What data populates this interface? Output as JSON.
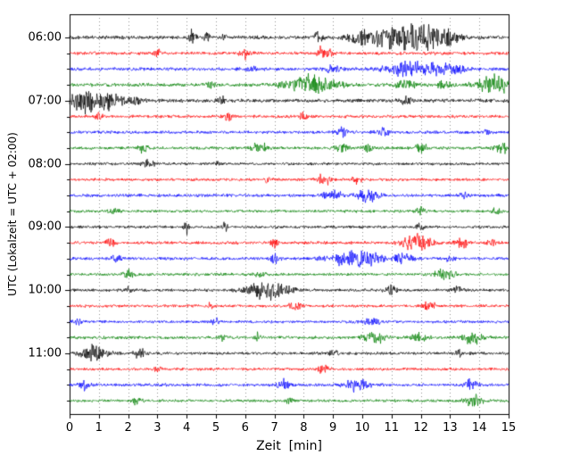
{
  "chart_data": {
    "type": "line",
    "subtype": "seismogram-helicorder",
    "title": "",
    "xlabel": "Zeit  [min]",
    "ylabel": "UTC (Lokalzeit = UTC + 02:00)",
    "xlim": [
      0,
      15
    ],
    "minutes_per_line": 15,
    "grid": "vertical-dotted",
    "legend": "none",
    "x_ticks": [
      "0",
      "1",
      "2",
      "3",
      "4",
      "5",
      "6",
      "7",
      "8",
      "9",
      "10",
      "11",
      "12",
      "13",
      "14",
      "15"
    ],
    "y_ticks": [
      "06:00",
      "07:00",
      "08:00",
      "09:00",
      "10:00",
      "11:00"
    ],
    "colors": {
      "black": "#000000",
      "red": "#ff0000",
      "blue": "#0000ff",
      "green": "#008000",
      "grid": "rgba(0,0,0,0.55)",
      "axis": "#000000"
    },
    "color_cycle": [
      "black",
      "red",
      "blue",
      "green"
    ],
    "traces": [
      {
        "start": "06:00",
        "color": "black",
        "base": 1.8,
        "bursts": [
          [
            4.2,
            0.08,
            8
          ],
          [
            4.7,
            0.06,
            5
          ],
          [
            5.3,
            0.05,
            4
          ],
          [
            8.5,
            0.1,
            5
          ],
          [
            10.0,
            0.3,
            4
          ],
          [
            11.3,
            0.8,
            11
          ],
          [
            12.3,
            0.5,
            7
          ],
          [
            13.0,
            0.2,
            4
          ]
        ]
      },
      {
        "start": "06:15",
        "color": "red",
        "base": 1.6,
        "bursts": [
          [
            3.0,
            0.1,
            3
          ],
          [
            6.0,
            0.12,
            5
          ],
          [
            8.6,
            0.08,
            7
          ],
          [
            8.9,
            0.1,
            4
          ]
        ]
      },
      {
        "start": "06:30",
        "color": "blue",
        "base": 1.7,
        "bursts": [
          [
            6.2,
            0.1,
            3
          ],
          [
            9.0,
            0.15,
            4
          ],
          [
            11.5,
            0.5,
            7
          ],
          [
            12.6,
            0.3,
            5
          ],
          [
            13.3,
            0.2,
            4
          ]
        ]
      },
      {
        "start": "06:45",
        "color": "green",
        "base": 1.7,
        "bursts": [
          [
            4.8,
            0.1,
            4
          ],
          [
            8.2,
            0.6,
            9
          ],
          [
            11.5,
            0.2,
            5
          ],
          [
            12.8,
            0.15,
            4
          ],
          [
            14.5,
            0.4,
            9
          ]
        ]
      },
      {
        "start": "07:00",
        "color": "black",
        "base": 1.8,
        "bursts": [
          [
            0.5,
            0.5,
            11
          ],
          [
            1.5,
            0.3,
            6
          ],
          [
            2.3,
            0.15,
            4
          ],
          [
            5.2,
            0.1,
            4
          ],
          [
            11.5,
            0.15,
            4
          ]
        ]
      },
      {
        "start": "07:15",
        "color": "red",
        "base": 1.5,
        "bursts": [
          [
            1.0,
            0.1,
            3
          ],
          [
            5.4,
            0.12,
            5
          ],
          [
            8.0,
            0.1,
            4
          ]
        ]
      },
      {
        "start": "07:30",
        "color": "blue",
        "base": 1.5,
        "bursts": [
          [
            9.3,
            0.12,
            5
          ],
          [
            10.7,
            0.15,
            4
          ],
          [
            14.2,
            0.1,
            3
          ]
        ]
      },
      {
        "start": "07:45",
        "color": "green",
        "base": 1.5,
        "bursts": [
          [
            2.5,
            0.12,
            4
          ],
          [
            6.5,
            0.2,
            5
          ],
          [
            9.3,
            0.15,
            4
          ],
          [
            10.2,
            0.12,
            4
          ],
          [
            12.0,
            0.15,
            5
          ],
          [
            14.8,
            0.2,
            5
          ]
        ]
      },
      {
        "start": "08:00",
        "color": "black",
        "base": 1.4,
        "bursts": [
          [
            2.7,
            0.15,
            3.5
          ],
          [
            5.0,
            0.08,
            2.5
          ]
        ]
      },
      {
        "start": "08:15",
        "color": "red",
        "base": 1.4,
        "bursts": [
          [
            6.8,
            0.08,
            3
          ],
          [
            8.7,
            0.15,
            6
          ],
          [
            9.8,
            0.12,
            4
          ]
        ]
      },
      {
        "start": "08:30",
        "color": "blue",
        "base": 1.5,
        "bursts": [
          [
            9.0,
            0.2,
            5
          ],
          [
            10.2,
            0.25,
            6
          ],
          [
            13.5,
            0.1,
            3
          ]
        ]
      },
      {
        "start": "08:45",
        "color": "green",
        "base": 1.4,
        "bursts": [
          [
            1.5,
            0.12,
            4
          ],
          [
            12.0,
            0.15,
            4
          ],
          [
            14.6,
            0.12,
            4
          ]
        ]
      },
      {
        "start": "09:00",
        "color": "black",
        "base": 1.4,
        "bursts": [
          [
            4.0,
            0.06,
            6
          ],
          [
            5.3,
            0.08,
            4
          ],
          [
            12.0,
            0.1,
            3
          ]
        ]
      },
      {
        "start": "09:15",
        "color": "red",
        "base": 1.5,
        "bursts": [
          [
            1.4,
            0.1,
            4
          ],
          [
            7.0,
            0.1,
            5
          ],
          [
            11.9,
            0.35,
            9
          ],
          [
            13.4,
            0.15,
            5
          ],
          [
            14.4,
            0.1,
            4
          ]
        ]
      },
      {
        "start": "09:30",
        "color": "blue",
        "base": 1.5,
        "bursts": [
          [
            1.6,
            0.15,
            4
          ],
          [
            7.0,
            0.12,
            4
          ],
          [
            9.8,
            0.6,
            9
          ],
          [
            11.4,
            0.2,
            5
          ],
          [
            13.0,
            0.1,
            3
          ]
        ]
      },
      {
        "start": "09:45",
        "color": "green",
        "base": 1.4,
        "bursts": [
          [
            2.0,
            0.12,
            4
          ],
          [
            6.5,
            0.1,
            3
          ],
          [
            12.8,
            0.25,
            5
          ]
        ]
      },
      {
        "start": "10:00",
        "color": "black",
        "base": 1.5,
        "bursts": [
          [
            2.0,
            0.1,
            3
          ],
          [
            6.8,
            0.5,
            9
          ],
          [
            11.0,
            0.15,
            4
          ],
          [
            13.3,
            0.12,
            4
          ]
        ]
      },
      {
        "start": "10:15",
        "color": "red",
        "base": 1.4,
        "bursts": [
          [
            4.8,
            0.08,
            3
          ],
          [
            7.7,
            0.12,
            5
          ],
          [
            12.3,
            0.15,
            5
          ]
        ]
      },
      {
        "start": "10:30",
        "color": "blue",
        "base": 1.4,
        "bursts": [
          [
            0.3,
            0.1,
            3
          ],
          [
            5.0,
            0.1,
            4
          ],
          [
            10.3,
            0.2,
            4
          ]
        ]
      },
      {
        "start": "10:45",
        "color": "green",
        "base": 1.5,
        "bursts": [
          [
            5.2,
            0.06,
            6
          ],
          [
            6.4,
            0.08,
            5
          ],
          [
            10.4,
            0.25,
            6
          ],
          [
            12.0,
            0.2,
            5
          ],
          [
            13.8,
            0.25,
            6
          ]
        ]
      },
      {
        "start": "11:00",
        "color": "black",
        "base": 1.5,
        "bursts": [
          [
            0.8,
            0.35,
            8
          ],
          [
            2.4,
            0.15,
            4
          ],
          [
            9.0,
            0.1,
            3
          ],
          [
            13.3,
            0.1,
            3
          ]
        ]
      },
      {
        "start": "11:15",
        "color": "red",
        "base": 1.4,
        "bursts": [
          [
            3.0,
            0.08,
            3
          ],
          [
            8.7,
            0.12,
            5
          ]
        ]
      },
      {
        "start": "11:30",
        "color": "blue",
        "base": 1.5,
        "bursts": [
          [
            0.5,
            0.12,
            5
          ],
          [
            7.3,
            0.15,
            5
          ],
          [
            9.8,
            0.3,
            6
          ],
          [
            13.7,
            0.15,
            5
          ]
        ]
      },
      {
        "start": "11:45",
        "color": "green",
        "base": 1.4,
        "bursts": [
          [
            2.3,
            0.1,
            4
          ],
          [
            7.5,
            0.1,
            3
          ],
          [
            13.8,
            0.2,
            6
          ]
        ]
      }
    ]
  }
}
